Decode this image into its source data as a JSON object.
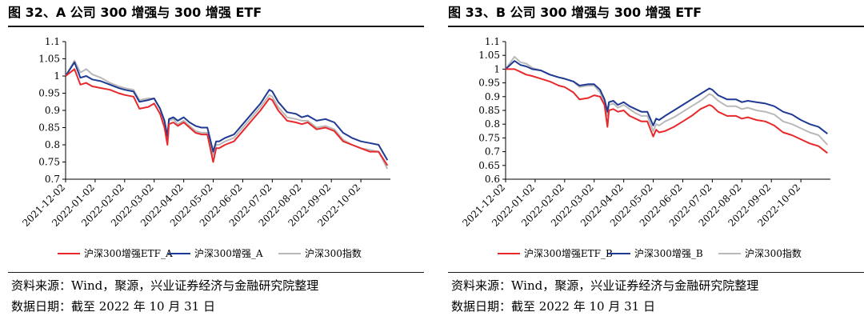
{
  "figure_a": {
    "title": "图 32、A 公司 300 增强与 300 增强 ETF",
    "source": "资料来源：Wind，聚源，兴业证券经济与金融研究院整理",
    "date_note": "数据日期：截至 2022 年 10 月 31 日"
  },
  "figure_b": {
    "title": "图 33、B 公司 300 增强与 300 增强 ETF",
    "source": "资料来源：Wind，聚源，兴业证券经济与金融研究院整理",
    "date_note": "数据日期：截至 2022 年 10 月 31 日"
  },
  "colors": {
    "red": "#e8282b",
    "navy": "#1f3a93",
    "gray": "#b9b9b9"
  },
  "chart_data": [
    {
      "type": "line",
      "title": "图 32、A 公司 300 增强与 300 增强 ETF",
      "x_ticks": [
        "2021-12-02",
        "2022-01-02",
        "2022-02-02",
        "2022-03-02",
        "2022-04-02",
        "2022-05-02",
        "2022-06-02",
        "2022-07-02",
        "2022-08-02",
        "2022-09-02",
        "2022-10-02"
      ],
      "x_range": [
        0,
        11
      ],
      "ylim": [
        0.7,
        1.1
      ],
      "y_ticks": [
        0.7,
        0.75,
        0.8,
        0.85,
        0.9,
        0.95,
        1,
        1.05,
        1.1
      ],
      "y_tick_labels": [
        "0.7",
        "0.75",
        "0.8",
        "0.85",
        "0.9",
        "0.95",
        "1",
        "1.05",
        "1.1"
      ],
      "x": [
        0,
        0.3,
        0.5,
        0.7,
        0.9,
        1.2,
        1.5,
        1.8,
        2.0,
        2.3,
        2.5,
        2.8,
        3.0,
        3.2,
        3.35,
        3.45,
        3.5,
        3.65,
        3.8,
        4.0,
        4.2,
        4.4,
        4.6,
        4.8,
        5.0,
        5.1,
        5.2,
        5.4,
        5.7,
        6.0,
        6.3,
        6.6,
        6.9,
        7.0,
        7.2,
        7.5,
        7.8,
        8.0,
        8.2,
        8.5,
        8.8,
        9.1,
        9.4,
        9.7,
        10.0,
        10.3,
        10.6,
        10.9
      ],
      "series": [
        {
          "name": "沪深300增强ETF_A",
          "color": "#e8282b",
          "values": [
            1.0,
            1.02,
            0.975,
            0.98,
            0.97,
            0.965,
            0.96,
            0.95,
            0.945,
            0.94,
            0.905,
            0.91,
            0.92,
            0.89,
            0.85,
            0.8,
            0.86,
            0.865,
            0.855,
            0.865,
            0.85,
            0.835,
            0.83,
            0.83,
            0.75,
            0.79,
            0.79,
            0.8,
            0.81,
            0.84,
            0.87,
            0.9,
            0.935,
            0.93,
            0.9,
            0.87,
            0.865,
            0.86,
            0.865,
            0.845,
            0.85,
            0.84,
            0.81,
            0.8,
            0.79,
            0.78,
            0.78,
            0.74
          ]
        },
        {
          "name": "沪深300增强_A",
          "color": "#1f3a93",
          "values": [
            1.0,
            1.04,
            0.995,
            1.0,
            0.99,
            0.985,
            0.975,
            0.965,
            0.96,
            0.955,
            0.925,
            0.93,
            0.935,
            0.905,
            0.87,
            0.825,
            0.875,
            0.88,
            0.87,
            0.88,
            0.865,
            0.855,
            0.85,
            0.85,
            0.78,
            0.81,
            0.81,
            0.82,
            0.83,
            0.86,
            0.89,
            0.92,
            0.96,
            0.955,
            0.925,
            0.895,
            0.89,
            0.88,
            0.885,
            0.87,
            0.875,
            0.865,
            0.835,
            0.82,
            0.81,
            0.805,
            0.8,
            0.755
          ]
        },
        {
          "name": "沪深300指数",
          "color": "#b9b9b9",
          "values": [
            1.0,
            1.045,
            1.01,
            1.02,
            1.005,
            0.995,
            0.98,
            0.97,
            0.965,
            0.96,
            0.93,
            0.935,
            0.935,
            0.905,
            0.865,
            0.82,
            0.87,
            0.875,
            0.86,
            0.87,
            0.855,
            0.84,
            0.835,
            0.835,
            0.77,
            0.8,
            0.8,
            0.81,
            0.82,
            0.85,
            0.88,
            0.91,
            0.945,
            0.94,
            0.91,
            0.88,
            0.875,
            0.87,
            0.87,
            0.85,
            0.855,
            0.845,
            0.815,
            0.8,
            0.79,
            0.785,
            0.78,
            0.73
          ]
        }
      ]
    },
    {
      "type": "line",
      "title": "图 33、B 公司 300 增强与 300 增强 ETF",
      "x_ticks": [
        "2021-12-02",
        "2022-01-02",
        "2022-02-02",
        "2022-03-02",
        "2022-04-02",
        "2022-05-02",
        "2022-06-02",
        "2022-07-02",
        "2022-08-02",
        "2022-09-02",
        "2022-10-02"
      ],
      "x_range": [
        0,
        11
      ],
      "ylim": [
        0.6,
        1.1
      ],
      "y_ticks": [
        0.6,
        0.65,
        0.7,
        0.75,
        0.8,
        0.85,
        0.9,
        0.95,
        1,
        1.05,
        1.1
      ],
      "y_tick_labels": [
        "0.6",
        "0.65",
        "0.7",
        "0.75",
        "0.8",
        "0.85",
        "0.9",
        "0.95",
        "1",
        "1.05",
        "1.1"
      ],
      "x": [
        0,
        0.3,
        0.5,
        0.7,
        0.9,
        1.2,
        1.5,
        1.8,
        2.0,
        2.3,
        2.5,
        2.8,
        3.0,
        3.2,
        3.35,
        3.45,
        3.5,
        3.65,
        3.8,
        4.0,
        4.2,
        4.4,
        4.6,
        4.8,
        5.0,
        5.1,
        5.2,
        5.4,
        5.7,
        6.0,
        6.3,
        6.6,
        6.9,
        7.0,
        7.2,
        7.5,
        7.8,
        8.0,
        8.2,
        8.5,
        8.8,
        9.1,
        9.4,
        9.7,
        10.0,
        10.3,
        10.6,
        10.9
      ],
      "series": [
        {
          "name": "沪深300增强ETF_B",
          "color": "#e8282b",
          "values": [
            1.0,
            1.0,
            0.99,
            0.98,
            0.975,
            0.965,
            0.955,
            0.94,
            0.935,
            0.915,
            0.89,
            0.895,
            0.905,
            0.9,
            0.87,
            0.79,
            0.85,
            0.855,
            0.845,
            0.85,
            0.83,
            0.82,
            0.81,
            0.81,
            0.755,
            0.78,
            0.77,
            0.775,
            0.79,
            0.81,
            0.83,
            0.855,
            0.87,
            0.865,
            0.845,
            0.83,
            0.83,
            0.82,
            0.825,
            0.815,
            0.81,
            0.795,
            0.77,
            0.76,
            0.745,
            0.73,
            0.72,
            0.695
          ]
        },
        {
          "name": "沪深300增强_B",
          "color": "#1f3a93",
          "values": [
            1.0,
            1.03,
            1.015,
            1.01,
            1.0,
            0.995,
            0.98,
            0.97,
            0.965,
            0.955,
            0.94,
            0.945,
            0.945,
            0.925,
            0.89,
            0.845,
            0.88,
            0.885,
            0.87,
            0.88,
            0.865,
            0.855,
            0.845,
            0.845,
            0.795,
            0.82,
            0.815,
            0.83,
            0.85,
            0.87,
            0.89,
            0.91,
            0.93,
            0.925,
            0.905,
            0.89,
            0.89,
            0.88,
            0.885,
            0.88,
            0.875,
            0.865,
            0.845,
            0.835,
            0.815,
            0.8,
            0.79,
            0.765
          ]
        },
        {
          "name": "沪深300指数",
          "color": "#b9b9b9",
          "values": [
            1.0,
            1.045,
            1.025,
            1.02,
            1.005,
            0.995,
            0.98,
            0.97,
            0.965,
            0.955,
            0.935,
            0.94,
            0.94,
            0.915,
            0.875,
            0.83,
            0.87,
            0.875,
            0.86,
            0.87,
            0.855,
            0.84,
            0.83,
            0.83,
            0.775,
            0.8,
            0.795,
            0.81,
            0.825,
            0.845,
            0.865,
            0.885,
            0.91,
            0.905,
            0.885,
            0.865,
            0.865,
            0.855,
            0.86,
            0.85,
            0.845,
            0.835,
            0.81,
            0.8,
            0.785,
            0.77,
            0.76,
            0.725
          ]
        }
      ]
    }
  ]
}
